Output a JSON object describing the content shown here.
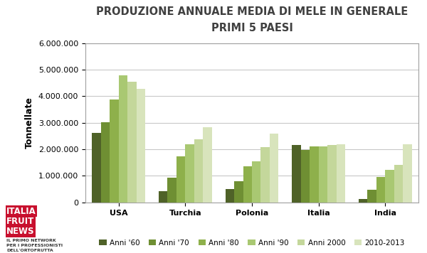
{
  "chart_data": {
    "type": "bar",
    "title": "PRODUZIONE ANNUALE MEDIA DI MELE IN GENERALE",
    "subtitle": "PRIMI 5 PAESI",
    "y_label": "Tonnellate",
    "categories": [
      "USA",
      "Turchia",
      "Polonia",
      "Italia",
      "India"
    ],
    "series": [
      {
        "name": "Anni '60",
        "color": "#4f6228",
        "values": [
          2620000,
          420000,
          500000,
          2150000,
          130000
        ]
      },
      {
        "name": "Anni '70",
        "color": "#6f8f33",
        "values": [
          3020000,
          930000,
          800000,
          1970000,
          470000
        ]
      },
      {
        "name": "Anni '80",
        "color": "#8eb04b",
        "values": [
          3870000,
          1730000,
          1350000,
          2100000,
          950000
        ]
      },
      {
        "name": "Anni '90",
        "color": "#a9c872",
        "values": [
          4770000,
          2200000,
          1550000,
          2100000,
          1220000
        ]
      },
      {
        "name": "Anni 2000",
        "color": "#c4d79b",
        "values": [
          4550000,
          2380000,
          2070000,
          2150000,
          1400000
        ]
      },
      {
        "name": "2010-2013",
        "color": "#d8e4bc",
        "values": [
          4270000,
          2820000,
          2600000,
          2200000,
          2200000
        ]
      }
    ],
    "ylim": [
      0,
      6000000
    ],
    "yticks": [
      0,
      {
        "value": 1000000,
        "label": "1.000.000"
      },
      {
        "value": 2000000,
        "label": "2.000.000"
      },
      {
        "value": 3000000,
        "label": "3.000.000"
      },
      {
        "value": 4000000,
        "label": "4.000.000"
      },
      {
        "value": 5000000,
        "label": "5.000.000"
      },
      {
        "value": 6000000,
        "label": "6.000.000"
      }
    ],
    "grid": true,
    "legend": "bottom",
    "annotations": [
      "ITALIA",
      "FRUIT",
      "NEWS",
      "IL PRIMO NETWORK",
      "PER I PROFESSIONISTI",
      "DELL'ORTOFRUTTA"
    ]
  }
}
